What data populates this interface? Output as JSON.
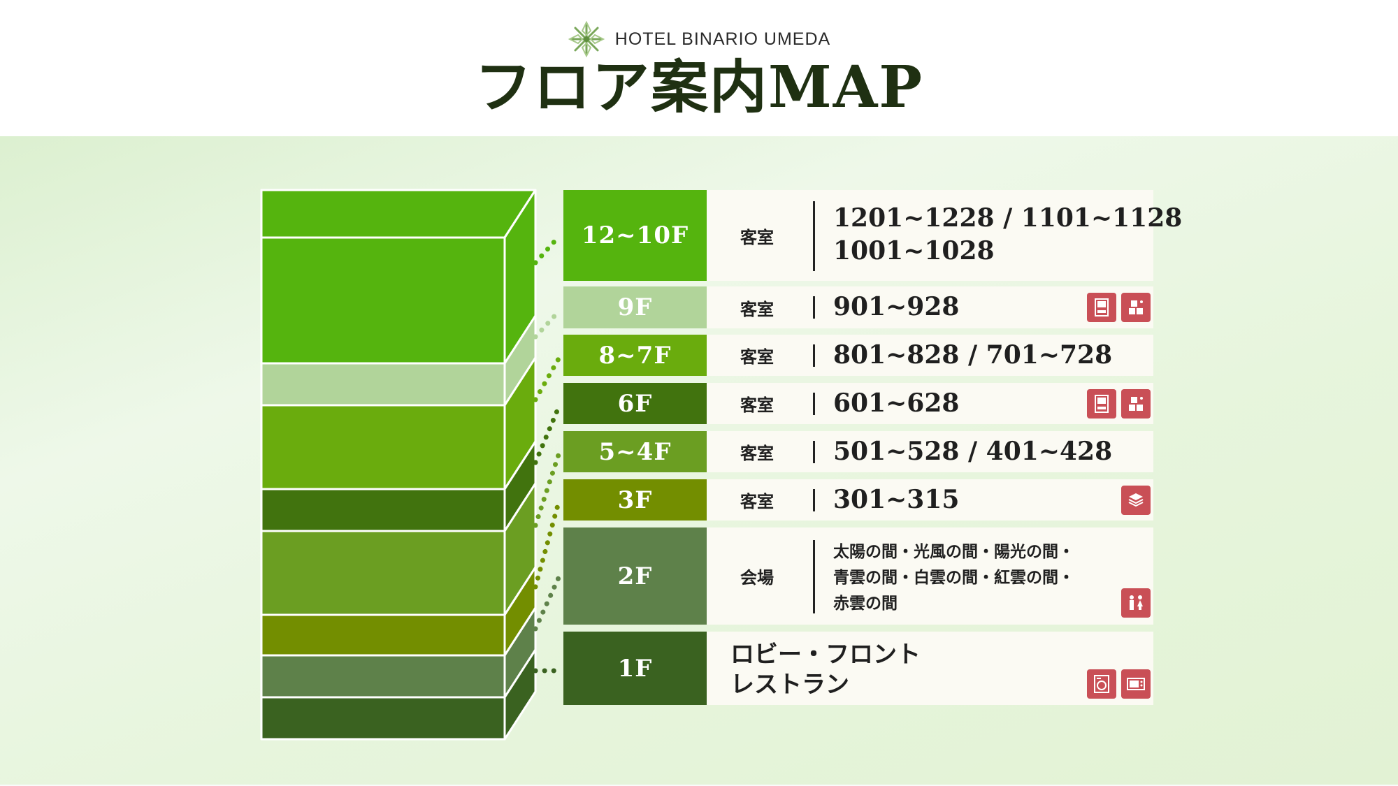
{
  "header": {
    "hotel_name": "HOTEL BINARIO UMEDA",
    "title": "フロア案内MAP"
  },
  "colors": {
    "title_text": "#1f3012",
    "info_background": "#fbfaf3",
    "amenity_icon_background": "#c94f56",
    "floor_12_10": "#55b40e",
    "floor_9": "#b1d49a",
    "floor_8_7": "#6aac0d",
    "floor_6": "#41730e",
    "floor_5_4": "#6b9e22",
    "floor_3": "#738e00",
    "floor_2": "#5e814a",
    "floor_1": "#3a6220"
  },
  "floors": [
    {
      "floor": "12~10F",
      "type": "客室",
      "rooms_line1": "1201~1228 / 1101~1128",
      "rooms_line2": "1001~1028",
      "icons": []
    },
    {
      "floor": "9F",
      "type": "客室",
      "rooms": "901~928",
      "icons": [
        "vending-machine-icon",
        "ice-machine-icon"
      ]
    },
    {
      "floor": "8~7F",
      "type": "客室",
      "rooms": "801~828 / 701~728",
      "icons": []
    },
    {
      "floor": "6F",
      "type": "客室",
      "rooms": "601~628",
      "icons": [
        "vending-machine-icon",
        "ice-machine-icon"
      ]
    },
    {
      "floor": "5~4F",
      "type": "客室",
      "rooms": "501~528 / 401~428",
      "icons": []
    },
    {
      "floor": "3F",
      "type": "客室",
      "rooms": "301~315",
      "icons": [
        "linen-icon"
      ]
    },
    {
      "floor": "2F",
      "type": "会場",
      "halls_line1": "太陽の間・光風の間・陽光の間・",
      "halls_line2": "青雲の間・白雲の間・紅雲の間・",
      "halls_line3": "赤雲の間",
      "icons": [
        "restroom-icon"
      ]
    },
    {
      "floor": "1F",
      "facilities_line1": "ロビー・フロント",
      "facilities_line2": "レストラン",
      "icons": [
        "washing-machine-icon",
        "microwave-icon"
      ]
    }
  ]
}
